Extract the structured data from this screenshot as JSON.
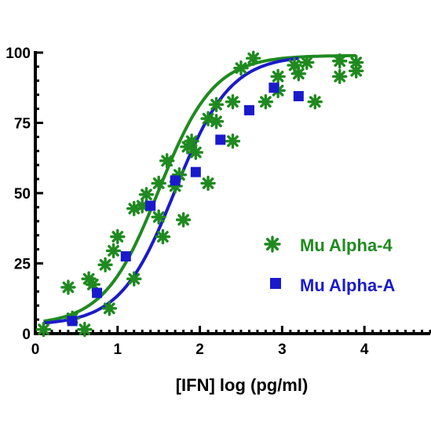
{
  "chart_data": {
    "type": "scatter",
    "title": "",
    "xlabel": "[IFN] log (pg/ml)",
    "ylabel": "",
    "xlim": [
      0,
      4.8
    ],
    "ylim": [
      0,
      100
    ],
    "x_ticks": [
      0,
      1,
      2,
      3,
      4
    ],
    "y_ticks": [
      0,
      25,
      50,
      75,
      100
    ],
    "grid": false,
    "legend_position": "right",
    "series": [
      {
        "name": "Mu Alpha-4",
        "color": "#1f8a1f",
        "marker": "asterisk",
        "points": [
          [
            0.1,
            1.5
          ],
          [
            0.4,
            16.5
          ],
          [
            0.45,
            5.5
          ],
          [
            0.6,
            1.5
          ],
          [
            0.65,
            19.5
          ],
          [
            0.7,
            17.5
          ],
          [
            0.85,
            24.5
          ],
          [
            0.9,
            9.0
          ],
          [
            0.95,
            29.5
          ],
          [
            1.0,
            34.5
          ],
          [
            1.2,
            19.5
          ],
          [
            1.2,
            44.5
          ],
          [
            1.3,
            45.5
          ],
          [
            1.35,
            49.5
          ],
          [
            1.5,
            41.5
          ],
          [
            1.5,
            53.5
          ],
          [
            1.55,
            34.5
          ],
          [
            1.6,
            61.5
          ],
          [
            1.7,
            52.5
          ],
          [
            1.75,
            56.5
          ],
          [
            1.8,
            40.5
          ],
          [
            1.85,
            66.5
          ],
          [
            1.9,
            68.5
          ],
          [
            1.95,
            64.5
          ],
          [
            2.1,
            53.5
          ],
          [
            2.1,
            76.5
          ],
          [
            2.2,
            75.5
          ],
          [
            2.2,
            81.5
          ],
          [
            2.4,
            68.5
          ],
          [
            2.4,
            82.5
          ],
          [
            2.5,
            94.5
          ],
          [
            2.65,
            98.0
          ],
          [
            2.8,
            82.5
          ],
          [
            2.95,
            86.5
          ],
          [
            2.95,
            91.5
          ],
          [
            3.15,
            95.5
          ],
          [
            3.2,
            92.5
          ],
          [
            3.3,
            96.5
          ],
          [
            3.4,
            82.5
          ],
          [
            3.7,
            97.0
          ],
          [
            3.7,
            91.5
          ],
          [
            3.9,
            93.5
          ],
          [
            3.9,
            96.5
          ]
        ],
        "curve": {
          "bottom": 3,
          "top": 99,
          "logEC50": 1.5,
          "hill": 1.3,
          "x_range": [
            0.1,
            3.9
          ]
        }
      },
      {
        "name": "Mu Alpha-A",
        "color": "#1a1acc",
        "marker": "square",
        "points": [
          [
            0.45,
            4.5
          ],
          [
            0.75,
            14.5
          ],
          [
            1.1,
            27.5
          ],
          [
            1.4,
            45.5
          ],
          [
            1.7,
            54.5
          ],
          [
            1.95,
            57.5
          ],
          [
            2.25,
            69.0
          ],
          [
            2.6,
            79.5
          ],
          [
            2.9,
            87.5
          ],
          [
            3.2,
            84.5
          ]
        ],
        "curve": {
          "bottom": 3,
          "top": 99,
          "logEC50": 1.7,
          "hill": 1.3,
          "x_range": [
            0.1,
            3.2
          ]
        }
      }
    ]
  }
}
